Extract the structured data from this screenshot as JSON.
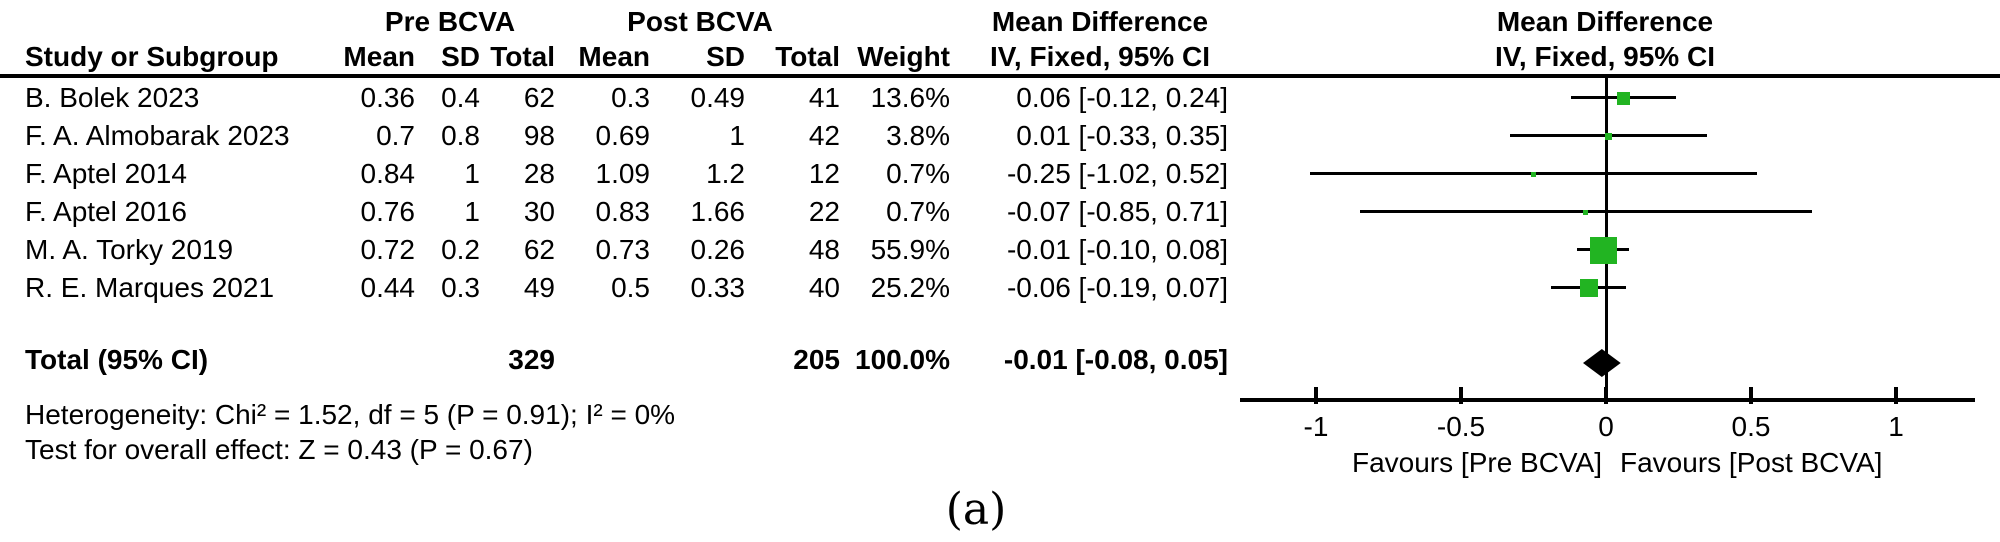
{
  "figure": {
    "caption": "(a)",
    "colors": {
      "marker_green": "#22B422",
      "diamond_black": "#000000",
      "line_black": "#000000"
    }
  },
  "chart_data": {
    "type": "forest",
    "title": "",
    "effect_measure": "Mean Difference",
    "method": "IV, Fixed, 95% CI",
    "group_headers": {
      "pre": "Pre BCVA",
      "post": "Post BCVA"
    },
    "columns": {
      "study": "Study or Subgroup",
      "mean": "Mean",
      "sd": "SD",
      "total": "Total",
      "weight": "Weight"
    },
    "studies": [
      {
        "name": "B. Bolek 2023",
        "pre_mean": "0.36",
        "pre_sd": "0.4",
        "pre_total": "62",
        "post_mean": "0.3",
        "post_sd": "0.49",
        "post_total": "41",
        "weight": "13.6%",
        "weight_pct": 13.6,
        "ci_text": "0.06 [-0.12, 0.24]",
        "md": 0.06,
        "ci_low": -0.12,
        "ci_high": 0.24
      },
      {
        "name": "F. A. Almobarak 2023",
        "pre_mean": "0.7",
        "pre_sd": "0.8",
        "pre_total": "98",
        "post_mean": "0.69",
        "post_sd": "1",
        "post_total": "42",
        "weight": "3.8%",
        "weight_pct": 3.8,
        "ci_text": "0.01 [-0.33, 0.35]",
        "md": 0.01,
        "ci_low": -0.33,
        "ci_high": 0.35
      },
      {
        "name": "F. Aptel 2014",
        "pre_mean": "0.84",
        "pre_sd": "1",
        "pre_total": "28",
        "post_mean": "1.09",
        "post_sd": "1.2",
        "post_total": "12",
        "weight": "0.7%",
        "weight_pct": 0.7,
        "ci_text": "-0.25 [-1.02, 0.52]",
        "md": -0.25,
        "ci_low": -1.02,
        "ci_high": 0.52
      },
      {
        "name": "F. Aptel 2016",
        "pre_mean": "0.76",
        "pre_sd": "1",
        "pre_total": "30",
        "post_mean": "0.83",
        "post_sd": "1.66",
        "post_total": "22",
        "weight": "0.7%",
        "weight_pct": 0.7,
        "ci_text": "-0.07 [-0.85, 0.71]",
        "md": -0.07,
        "ci_low": -0.85,
        "ci_high": 0.71
      },
      {
        "name": "M. A. Torky 2019",
        "pre_mean": "0.72",
        "pre_sd": "0.2",
        "pre_total": "62",
        "post_mean": "0.73",
        "post_sd": "0.26",
        "post_total": "48",
        "weight": "55.9%",
        "weight_pct": 55.9,
        "ci_text": "-0.01 [-0.10, 0.08]",
        "md": -0.01,
        "ci_low": -0.1,
        "ci_high": 0.08
      },
      {
        "name": "R. E. Marques 2021",
        "pre_mean": "0.44",
        "pre_sd": "0.3",
        "pre_total": "49",
        "post_mean": "0.5",
        "post_sd": "0.33",
        "post_total": "40",
        "weight": "25.2%",
        "weight_pct": 25.2,
        "ci_text": "-0.06 [-0.19, 0.07]",
        "md": -0.06,
        "ci_low": -0.19,
        "ci_high": 0.07
      }
    ],
    "total": {
      "label": "Total (95% CI)",
      "pre_total": "329",
      "post_total": "205",
      "weight": "100.0%",
      "ci_text": "-0.01 [-0.08, 0.05]",
      "md": -0.01,
      "ci_low": -0.08,
      "ci_high": 0.05
    },
    "heterogeneity": "Heterogeneity: Chi² = 1.52, df = 5 (P = 0.91); I² = 0%",
    "overall_effect": "Test for overall effect: Z = 0.43 (P = 0.67)",
    "axis": {
      "tick_values": [
        -1,
        -0.5,
        0,
        0.5,
        1
      ],
      "tick_labels": [
        "-1",
        "-0.5",
        "0",
        "0.5",
        "1"
      ],
      "xlim": [
        -1.26,
        1.27
      ]
    },
    "favours_left": "Favours [Pre BCVA]",
    "favours_right": "Favours [Post BCVA]"
  }
}
